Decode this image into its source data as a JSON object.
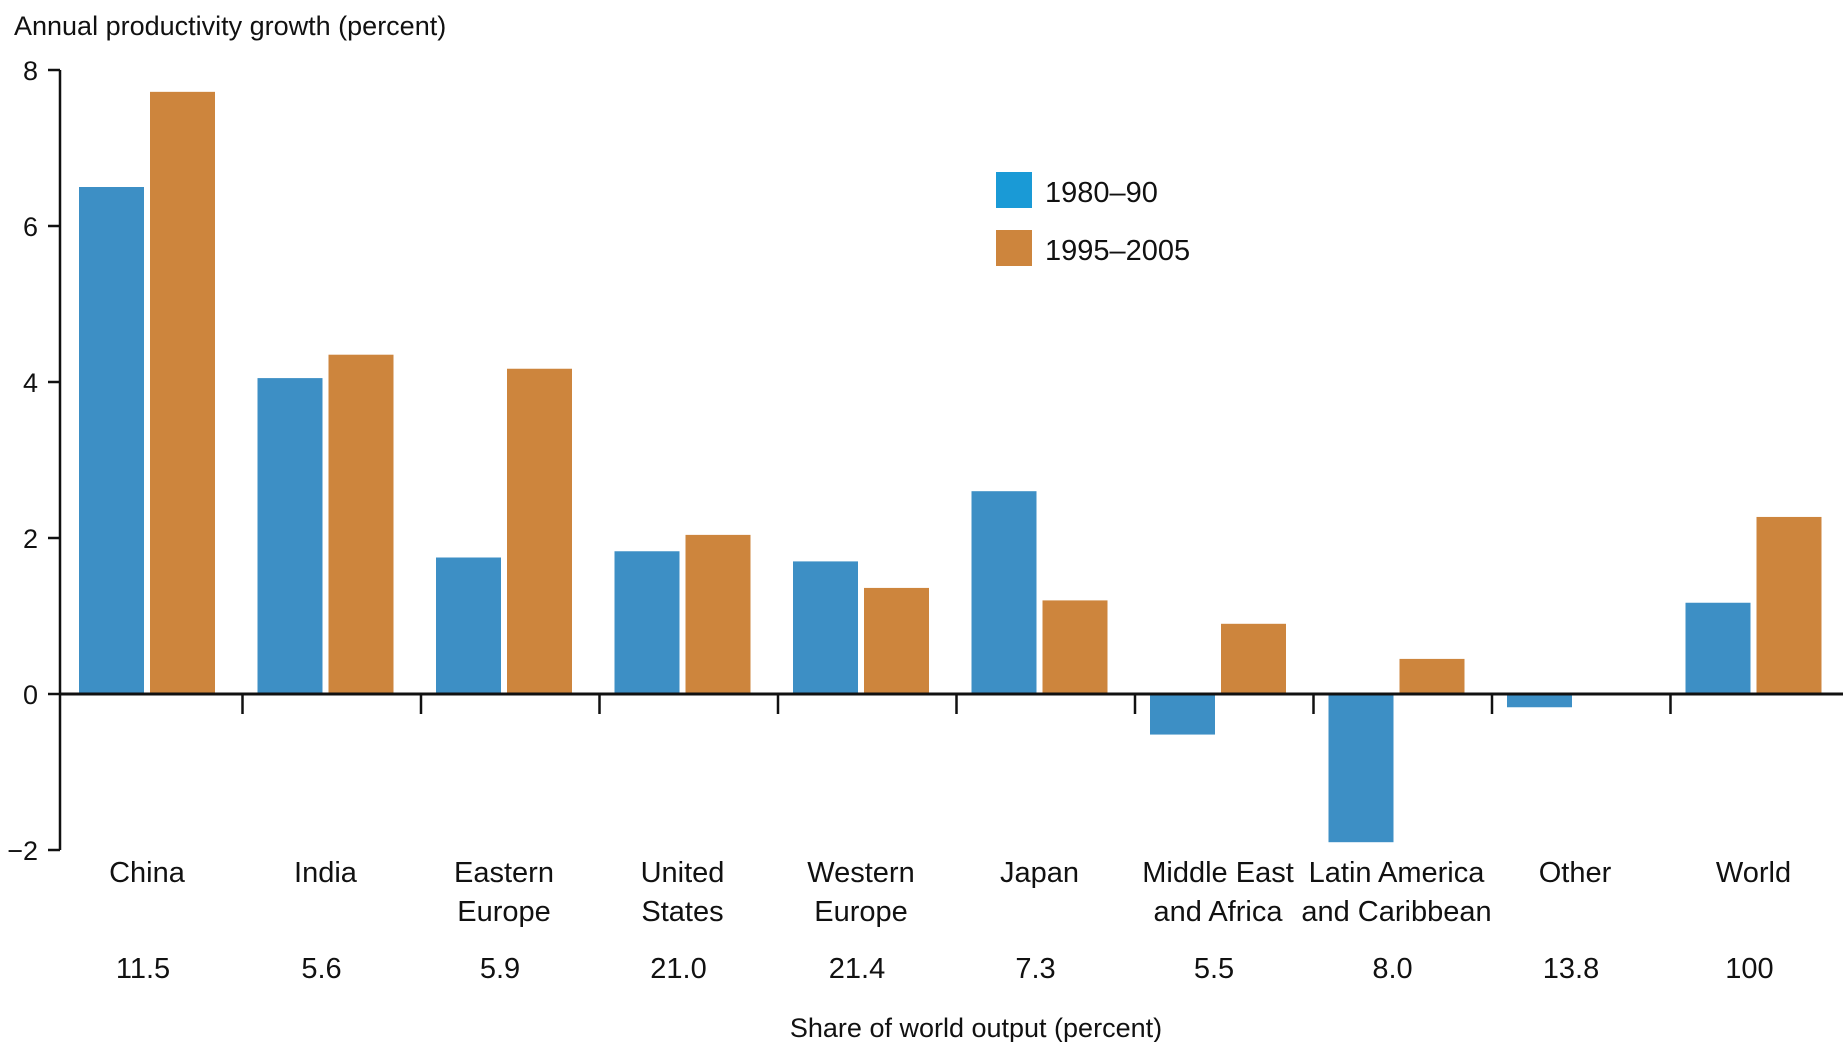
{
  "chart_data": {
    "type": "bar",
    "ylabel": "Annual productivity growth (percent)",
    "xlabel": "Share of world output (percent)",
    "ylim": [
      -2,
      8
    ],
    "yticks": [
      8,
      6,
      4,
      2,
      0,
      -2
    ],
    "ytick_labels": [
      "8",
      "6",
      "4",
      "2",
      "0",
      "−2"
    ],
    "grid": false,
    "legend_position": "top-center",
    "categories": [
      {
        "label": [
          "China"
        ],
        "share": "11.5"
      },
      {
        "label": [
          "India"
        ],
        "share": "5.6"
      },
      {
        "label": [
          "Eastern",
          "Europe"
        ],
        "share": "5.9"
      },
      {
        "label": [
          "United",
          "States"
        ],
        "share": "21.0"
      },
      {
        "label": [
          "Western",
          "Europe"
        ],
        "share": "21.4"
      },
      {
        "label": [
          "Japan"
        ],
        "share": "7.3"
      },
      {
        "label": [
          "Middle East",
          "and Africa"
        ],
        "share": "5.5"
      },
      {
        "label": [
          "Latin America",
          "and Caribbean"
        ],
        "share": "8.0"
      },
      {
        "label": [
          "Other"
        ],
        "share": "13.8"
      },
      {
        "label": [
          "World"
        ],
        "share": "100"
      }
    ],
    "series": [
      {
        "name": "1980–90",
        "color": "#3d8fc5",
        "legend_color": "#1a9ad6",
        "values": [
          6.5,
          4.05,
          1.75,
          1.83,
          1.7,
          2.6,
          -0.52,
          -1.9,
          -0.17,
          1.17
        ]
      },
      {
        "name": "1995–2005",
        "color": "#cd853d",
        "legend_color": "#cd853d",
        "values": [
          7.72,
          4.35,
          4.17,
          2.04,
          1.36,
          1.2,
          0.9,
          0.45,
          null,
          2.27
        ]
      }
    ]
  }
}
